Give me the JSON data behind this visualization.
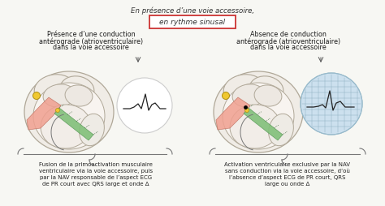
{
  "title_top": "En présence d’une voie accessoire,",
  "title_box": "en rythme sinusal",
  "title_box_color": "#cc3333",
  "bg_color": "#f7f7f3",
  "left_heading_line1": "Présence d’une conduction",
  "left_heading_line2": "antérograde (atrioventriculaire)",
  "left_heading_line3": "dans la voie accessoire",
  "right_heading_line1": "Absence de conduction",
  "right_heading_line2": "antérograde (atrioventriculaire)",
  "right_heading_line3": "dans la voie accessoire",
  "left_caption_line1": "Fusion de la primoactivation musculaire",
  "left_caption_line2": "ventriculaire via la voie accessoire, puis",
  "left_caption_line3": "par la NAV responsable de l’aspect ECG",
  "left_caption_line4": "de PR court avec QRS large et onde Δ",
  "right_caption_line1": "Activation ventriculaire exclusive par la NAV",
  "right_caption_line2": "sans conduction via la voie accessoire, d’où",
  "right_caption_line3": "l’absence d’aspect ECG de PR court, QRS",
  "right_caption_line4": "large ou onde Δ",
  "heart_outer_fc": "#f0ece6",
  "heart_outer_ec": "#b0a898",
  "atria_fc": "#e5e0da",
  "vent_fc": "#eae5df",
  "green_fc": "#82c07a",
  "green_ec": "#5a9a5a",
  "pink_fc": "#f0a090",
  "pink_ec": "#c07060",
  "sa_fc": "#f0c830",
  "sa_ec": "#b09010",
  "ecg_grid_fc": "#cce0ee",
  "ecg_grid_ec": "#99bbcc"
}
